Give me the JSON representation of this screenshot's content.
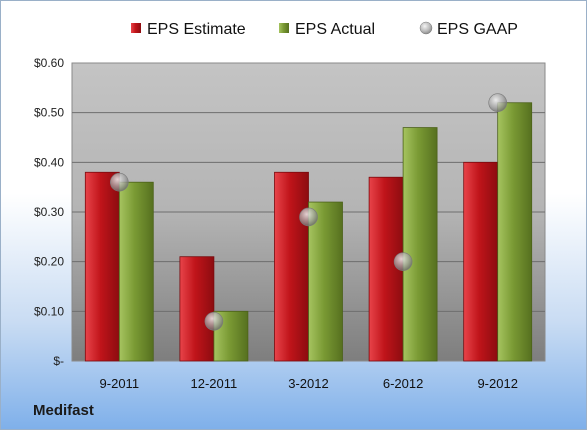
{
  "company": "Medifast",
  "chart_data": {
    "type": "bar",
    "categories": [
      "9-2011",
      "12-2011",
      "3-2012",
      "6-2012",
      "9-2012"
    ],
    "series": [
      {
        "name": "EPS Estimate",
        "kind": "bar",
        "color": "#c0141a",
        "values": [
          0.38,
          0.21,
          0.38,
          0.37,
          0.4
        ]
      },
      {
        "name": "EPS Actual",
        "kind": "bar",
        "color": "#7a9a34",
        "values": [
          0.36,
          0.1,
          0.32,
          0.47,
          0.52
        ]
      },
      {
        "name": "EPS GAAP",
        "kind": "marker",
        "color": "#a9a9a9",
        "values": [
          0.36,
          0.08,
          0.29,
          0.2,
          0.52
        ]
      }
    ],
    "y_ticks": [
      {
        "value": 0.0,
        "label": "$-"
      },
      {
        "value": 0.1,
        "label": "$0.10"
      },
      {
        "value": 0.2,
        "label": "$0.20"
      },
      {
        "value": 0.3,
        "label": "$0.30"
      },
      {
        "value": 0.4,
        "label": "$0.40"
      },
      {
        "value": 0.5,
        "label": "$0.50"
      },
      {
        "value": 0.6,
        "label": "$0.60"
      }
    ],
    "ylim": [
      0,
      0.6
    ],
    "grid": true,
    "legend_position": "top"
  }
}
